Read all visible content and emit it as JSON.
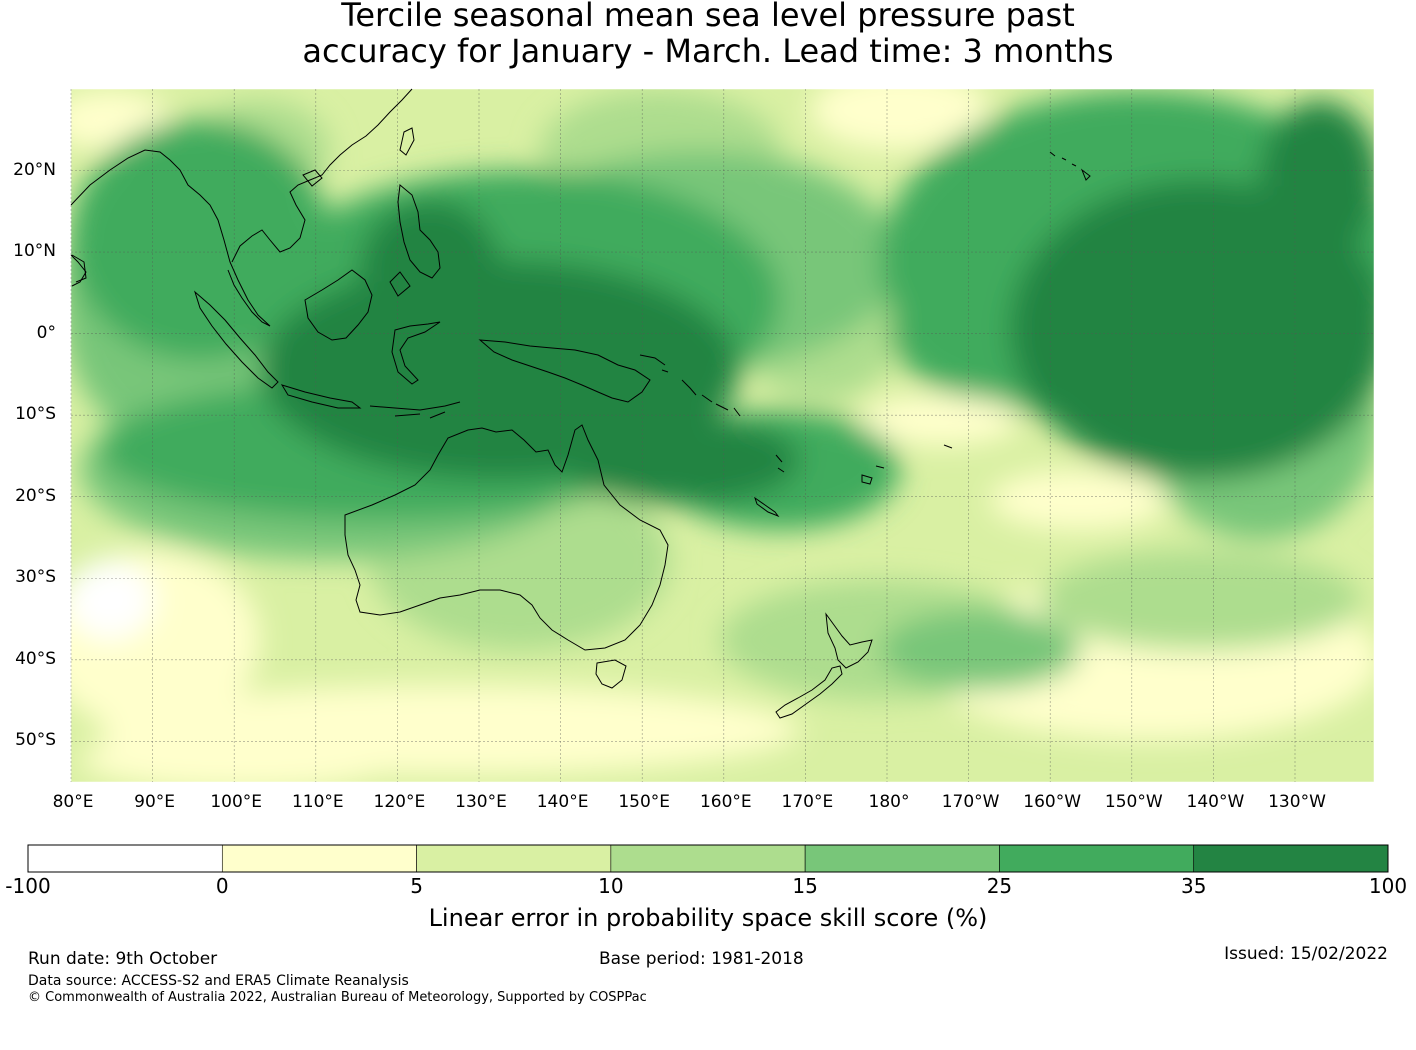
{
  "title": {
    "line1": "Tercile seasonal mean sea level pressure past",
    "line2": "accuracy for January - March. Lead time: 3 months"
  },
  "map": {
    "lat_labels": [
      "20°N",
      "10°N",
      "0°",
      "10°S",
      "20°S",
      "30°S",
      "40°S",
      "50°S"
    ],
    "lon_labels": [
      "80°E",
      "90°E",
      "100°E",
      "110°E",
      "120°E",
      "130°E",
      "140°E",
      "150°E",
      "160°E",
      "170°E",
      "180°",
      "170°W",
      "160°W",
      "150°W",
      "140°W",
      "130°W"
    ],
    "lat_range": [
      -55,
      30
    ],
    "lon_range_east": [
      80,
      240
    ]
  },
  "colorbar": {
    "title": "Linear error in probability space skill score (%)",
    "bounds": [
      "-100",
      "0",
      "5",
      "10",
      "15",
      "25",
      "35",
      "100"
    ],
    "colors": [
      "#ffffff",
      "#ffffcc",
      "#d9f0a3",
      "#addd8e",
      "#78c679",
      "#41ab5d",
      "#238443"
    ]
  },
  "footer": {
    "run_date": "Run date: 9th October",
    "base_period": "Base period: 1981-2018",
    "issued": "Issued: 15/02/2022",
    "source": "Data source: ACCESS-S2 and ERA5 Climate Reanalysis",
    "copyright": "© Commonwealth of Australia 2022, Australian Bureau of Meteorology, Supported by COSPPac"
  }
}
